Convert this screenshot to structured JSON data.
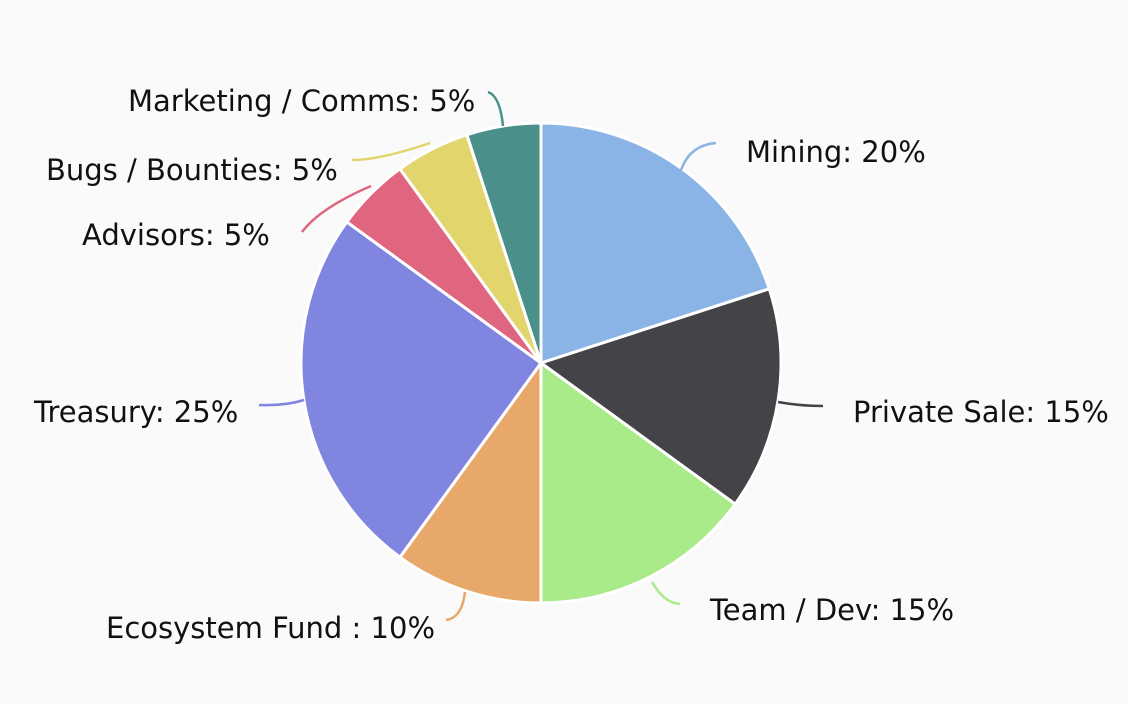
{
  "chart_data": {
    "type": "pie",
    "start_angle_deg": 0,
    "direction": "clockwise",
    "slices": [
      {
        "label": "Mining: 20%",
        "name": "Mining",
        "value": 20,
        "color": "#8ab4e5"
      },
      {
        "label": "Private Sale: 15%",
        "name": "Private Sale",
        "value": 15,
        "color": "#434348"
      },
      {
        "label": "Team / Dev: 15%",
        "name": "Team / Dev",
        "value": 15,
        "color": "#a8eb88"
      },
      {
        "label": "Ecosystem Fund : 10%",
        "name": "Ecosystem Fund",
        "value": 10,
        "color": "#e8a86a"
      },
      {
        "label": "Treasury: 25%",
        "name": "Treasury",
        "value": 25,
        "color": "#8085e0"
      },
      {
        "label": "Advisors: 5%",
        "name": "Advisors",
        "value": 5,
        "color": "#e0657f"
      },
      {
        "label": "Bugs / Bounties: 5%",
        "name": "Bugs / Bounties",
        "value": 5,
        "color": "#e2d56c"
      },
      {
        "label": "Marketing / Comms: 5%",
        "name": "Marketing / Comms",
        "value": 5,
        "color": "#4a8f8a"
      }
    ]
  }
}
